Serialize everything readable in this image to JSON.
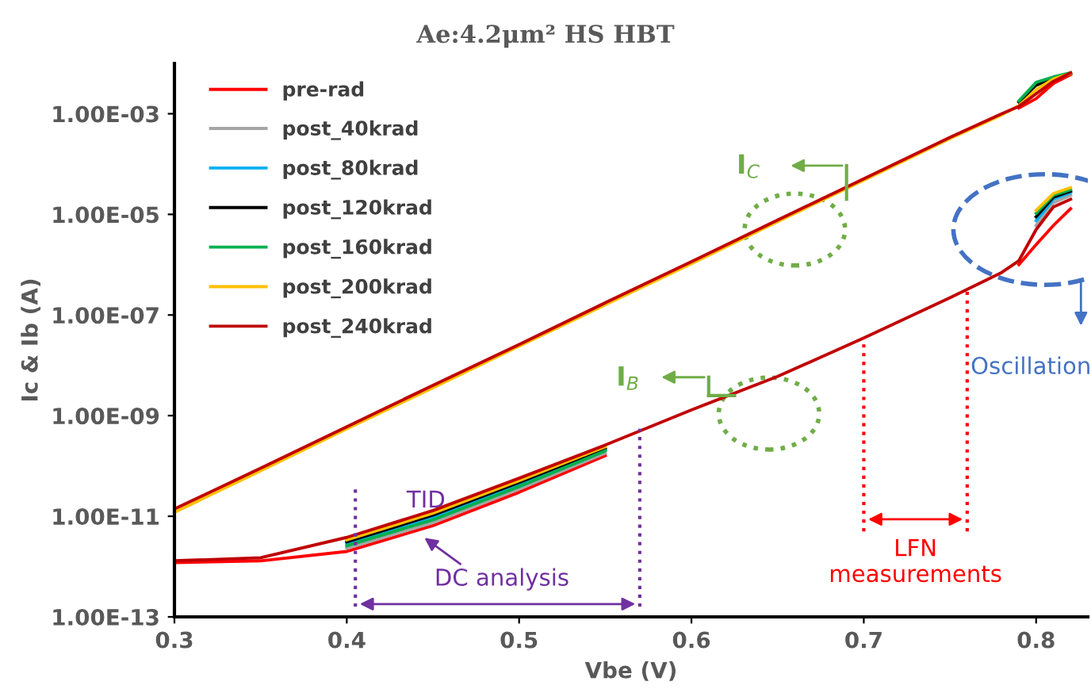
{
  "chart_data": {
    "type": "line",
    "title": "Ae:4.2μm² HS HBT",
    "xlabel": "Vbe (V)",
    "ylabel": "Ic & Ib (A)",
    "log": "y",
    "grid": false,
    "legend": "top left",
    "marker": "none",
    "line_style": "solid",
    "xlim": [
      0.3,
      0.83
    ],
    "xticks": [
      0.3,
      0.4,
      0.5,
      0.6,
      0.7,
      0.8
    ],
    "ylim": [
      1e-13,
      0.01
    ],
    "yticks": [
      {
        "value": 1e-13,
        "label": "1.00E-13"
      },
      {
        "value": 1e-11,
        "label": "1.00E-11"
      },
      {
        "value": 1e-09,
        "label": "1.00E-09"
      },
      {
        "value": 1e-07,
        "label": "1.00E-07"
      },
      {
        "value": 1e-05,
        "label": "1.00E-05"
      },
      {
        "value": 0.001,
        "label": "1.00E-03"
      }
    ],
    "x": [
      0.3,
      0.35,
      0.4,
      0.45,
      0.5,
      0.55,
      0.6,
      0.65,
      0.7,
      0.75,
      0.78,
      0.79,
      0.8,
      0.81,
      0.82
    ],
    "series": [
      {
        "color": "#ff0000",
        "values": [
          null,
          null,
          null,
          null,
          null,
          null,
          null,
          null,
          null,
          null,
          null,
          0.0013,
          0.002,
          0.004,
          0.006
        ]
      },
      {
        "color": "#000000",
        "values": [
          null,
          null,
          null,
          null,
          null,
          null,
          null,
          null,
          null,
          null,
          null,
          0.0017,
          0.0037,
          0.0051,
          0.0063
        ]
      },
      {
        "color": "#00b050",
        "values": [
          null,
          null,
          null,
          null,
          null,
          null,
          null,
          null,
          null,
          null,
          null,
          0.0018,
          0.0042,
          0.0054,
          0.0065
        ]
      },
      {
        "color": "#ffc000",
        "values": [
          1.2e-11,
          8e-11,
          5.5e-10,
          3.6e-09,
          2.4e-08,
          1.6e-07,
          1.05e-06,
          7.2e-06,
          4.8e-05,
          0.00032,
          0.00095,
          0.00145,
          0.003,
          0.0049,
          0.0063
        ]
      },
      {
        "color": "#c00000",
        "values": [
          1.4e-11,
          9e-11,
          6e-10,
          4e-09,
          2.6e-08,
          1.75e-07,
          1.15e-06,
          7.7e-06,
          5.1e-05,
          0.00034,
          0.001,
          0.0014,
          0.0025,
          0.0044,
          0.0065
        ]
      },
      {
        "name": "pre-rad",
        "color": "#ff0000",
        "values": [
          1.2e-12,
          1.3e-12,
          2e-12,
          6.5e-12,
          3e-11,
          1.6e-10,
          null,
          null,
          null,
          null,
          null,
          1e-06,
          2.5e-06,
          6e-06,
          1.3e-05
        ]
      },
      {
        "name": "post_40krad",
        "color": "#a5a5a5",
        "values": [
          null,
          null,
          2.3e-12,
          7.5e-12,
          3.5e-11,
          1.8e-10,
          null,
          null,
          null,
          null,
          null,
          null,
          6e-06,
          1.7e-05,
          2.4e-05
        ]
      },
      {
        "name": "post_80krad",
        "color": "#00b0f0",
        "values": [
          null,
          null,
          2.9e-12,
          9.5e-12,
          4.3e-11,
          2.1e-10,
          null,
          null,
          null,
          null,
          null,
          null,
          7.5e-06,
          2e-05,
          2.7e-05
        ]
      },
      {
        "name": "post_120krad",
        "color": "#000000",
        "values": [
          null,
          null,
          3.1e-12,
          1.05e-11,
          4.7e-11,
          2.25e-10,
          null,
          null,
          null,
          null,
          null,
          null,
          9e-06,
          2.2e-05,
          2.9e-05
        ]
      },
      {
        "name": "post_160krad",
        "color": "#00b050",
        "values": [
          null,
          null,
          2.6e-12,
          8.5e-12,
          3.9e-11,
          2e-10,
          null,
          null,
          null,
          null,
          null,
          null,
          1.05e-05,
          2.4e-05,
          3.1e-05
        ]
      },
      {
        "name": "post_200krad",
        "color": "#ffc000",
        "values": [
          null,
          null,
          3.4e-12,
          1.15e-11,
          5.1e-11,
          2.4e-10,
          null,
          null,
          null,
          null,
          null,
          null,
          1.2e-05,
          2.6e-05,
          3.4e-05
        ]
      },
      {
        "name": "post_240krad",
        "color": "#c00000",
        "values": [
          1.3e-12,
          1.5e-12,
          3.8e-12,
          1.3e-11,
          5.7e-11,
          2.6e-10,
          1.3e-09,
          6e-09,
          3.5e-08,
          2.2e-07,
          7e-07,
          1.2e-06,
          5e-06,
          1.4e-05,
          2e-05
        ]
      }
    ],
    "annotations": [
      "I$_{C}$",
      "I$_{B}$",
      "Oscillation",
      "TID",
      "DC analysis",
      "LFN\nmeasurements"
    ]
  }
}
